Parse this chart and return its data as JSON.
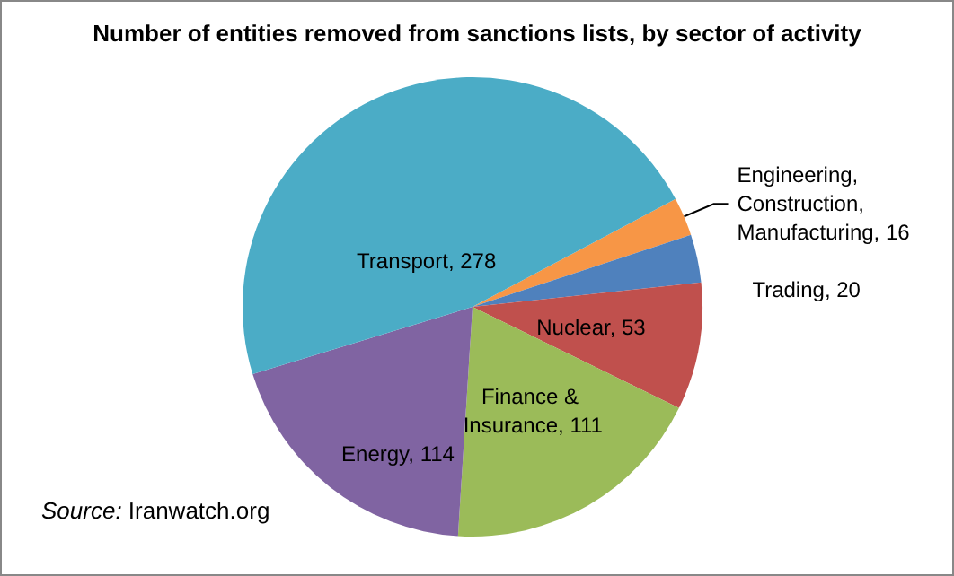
{
  "chart_data": {
    "type": "pie",
    "title": "Number of entities removed from sanctions lists, by sector of activity",
    "categories": [
      "Engineering, Construction, Manufacturing",
      "Trading",
      "Nuclear",
      "Finance & Insurance",
      "Energy",
      "Transport"
    ],
    "values": [
      16,
      20,
      53,
      111,
      114,
      278
    ],
    "colors": [
      "#f79646",
      "#4f81bd",
      "#c0504d",
      "#9bbb59",
      "#8064a2",
      "#4bacc6"
    ],
    "value_labels": [
      "16",
      "20",
      "53",
      "111",
      "114",
      "278"
    ],
    "legend": false,
    "annotations": [
      "Source: Iranwatch.org"
    ]
  }
}
